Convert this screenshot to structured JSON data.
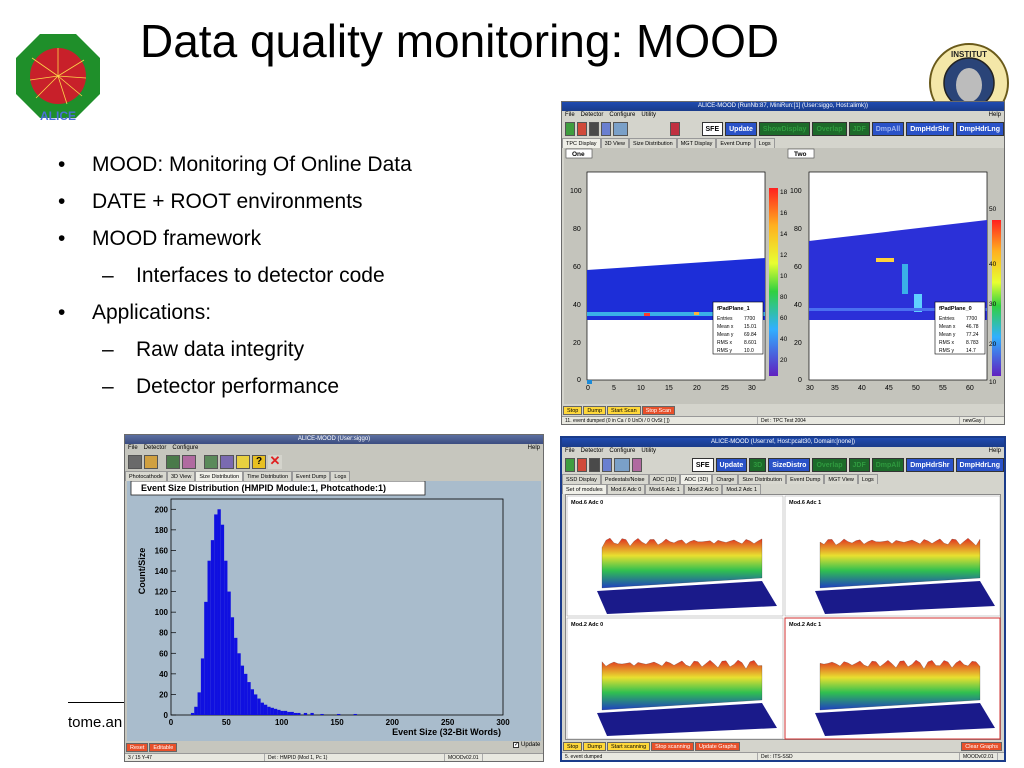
{
  "slide": {
    "title": "Data quality monitoring: MOOD",
    "bullets": [
      {
        "marker": "•",
        "text": "MOOD: Monitoring Of Online Data"
      },
      {
        "marker": "•",
        "text": "DATE + ROOT environments"
      },
      {
        "marker": "•",
        "text": "MOOD framework"
      },
      {
        "marker": "–",
        "text": "Interfaces to detector code",
        "sub": true
      },
      {
        "marker": "•",
        "text": "Applications:"
      },
      {
        "marker": "–",
        "text": "Raw data integrity",
        "sub": true
      },
      {
        "marker": "–",
        "text": "Detector performance",
        "sub": true
      }
    ],
    "footer": "tome.an",
    "logo_left_text": "ALICE",
    "logo_right_text": "INSTITUT"
  },
  "tpc_window": {
    "title": "ALICE-MOOD (RunNb:87, MiniRun:[1] (User:siggo, Host:alimk))",
    "menu": [
      "File",
      "Detector",
      "Configure",
      "Utility"
    ],
    "help": "Help",
    "buttons": [
      "SFE",
      "Update",
      "ShowDisplay",
      "Overlap",
      "JDF",
      "DmpAll",
      "DmpHdrShr",
      "DmpHdrLng"
    ],
    "tabs": [
      "TPC Display",
      "3D View",
      "Size Distribution",
      "MGT Display",
      "Event Dump",
      "Logs"
    ],
    "pad_labels": [
      "One",
      "Two"
    ],
    "panel1": {
      "yticks": [
        "100",
        "80",
        "60",
        "40",
        "20",
        "0"
      ],
      "xticks": [
        "0",
        "5",
        "10",
        "15",
        "20",
        "25",
        "30"
      ],
      "zticks": [
        "18",
        "16",
        "14",
        "12",
        "10",
        "80",
        "60",
        "40",
        "20"
      ],
      "stats": {
        "name": "fPadPlane_1",
        "rows": [
          [
            "Entries",
            "7700"
          ],
          [
            "Mean x",
            "15.01"
          ],
          [
            "Mean y",
            "69.84"
          ],
          [
            "RMS x",
            "8.601"
          ],
          [
            "RMS y",
            "10.0"
          ]
        ]
      }
    },
    "panel2": {
      "yticks": [
        "100",
        "80",
        "60",
        "40",
        "20",
        "0"
      ],
      "xticks": [
        "30",
        "35",
        "40",
        "45",
        "50",
        "55",
        "60"
      ],
      "zticks": [
        "50",
        "40",
        "30",
        "20",
        "10"
      ],
      "stats": {
        "name": "fPadPlane_0",
        "rows": [
          [
            "Entries",
            "7700"
          ],
          [
            "Mean x",
            "46.78"
          ],
          [
            "Mean y",
            "77.24"
          ],
          [
            "RMS x",
            "8.783"
          ],
          [
            "RMS y",
            "14.7"
          ]
        ]
      }
    },
    "bottom_buttons": [
      "Stop",
      "Dump",
      "Start Scan",
      "Stop Scan"
    ],
    "status": [
      "11. event dumped (0 in Ca / 0 UnDi / 0 OvSt [ ])",
      "Det : TPC Test 2004",
      "newGay"
    ]
  },
  "hmpid_window": {
    "title": "ALICE-MOOD (User:siggo)",
    "menu": [
      "File",
      "Detector",
      "Configure"
    ],
    "help": "Help",
    "tabs": [
      "Photocathode",
      "3D View",
      "Size Distribution",
      "Time Distribution",
      "Event Dump",
      "Logs"
    ],
    "plot_title": "Event Size Distribution (HMPID Module:1, Photcathode:1)",
    "update_label": "Update",
    "bottom_buttons": [
      "Reset",
      "Editable"
    ],
    "status": [
      "3 / 15 Y-47",
      "Det : HMPID (Mod 1, Pc 1)",
      "MOODv02.01"
    ]
  },
  "its_window": {
    "title": "ALICE-MOOD (User:ref, Host:pcalt30, Domain:[none])",
    "menu": [
      "File",
      "Detector",
      "Configure",
      "Utility"
    ],
    "help": "Help",
    "buttons": [
      "SFE",
      "Update",
      "3D",
      "SizeDistro",
      "Overlap",
      "JDF",
      "DmpAll",
      "DmpHdrShr",
      "DmpHdrLng"
    ],
    "tabs": [
      "SSD Display",
      "Pedestals/Noise",
      "ADC (1D)",
      "ADC (3D)",
      "Charge",
      "Size Distribution",
      "Event Dump",
      "MGT View",
      "Logs"
    ],
    "subtabs": [
      "Set of modules",
      "Mod.6 Adc 0",
      "Mod.6 Adc 1",
      "Mod.2 Adc 0",
      "Mod.2 Adc 1"
    ],
    "pads": [
      "Mod.6 Adc 0",
      "Mod.6 Adc 1",
      "Mod.2 Adc 0",
      "Mod.2 Adc 1"
    ],
    "bottom_buttons": [
      "Stop",
      "Dump",
      "Start scanning",
      "Stop scanning",
      "Update Graphs"
    ],
    "clear_label": "Clear Graphs",
    "status": [
      "5. event dumped",
      "Det : ITS-SSD",
      "MOODv02.01"
    ]
  },
  "chart_data": [
    {
      "type": "bar",
      "title": "Event Size Distribution (HMPID Module:1, Photcathode:1)",
      "xlabel": "Event Size (32-Bit Words)",
      "ylabel": "Count/Size",
      "xlim": [
        0,
        300
      ],
      "ylim": [
        0,
        210
      ],
      "xticks": [
        0,
        50,
        100,
        150,
        200,
        250,
        300
      ],
      "yticks": [
        0,
        20,
        40,
        60,
        80,
        100,
        120,
        140,
        160,
        180,
        200
      ],
      "bin_width": 3,
      "x": [
        18,
        21,
        24,
        27,
        30,
        33,
        36,
        39,
        42,
        45,
        48,
        51,
        54,
        57,
        60,
        63,
        66,
        69,
        72,
        75,
        78,
        81,
        84,
        87,
        90,
        93,
        96,
        99,
        102,
        105,
        108,
        111,
        114,
        120,
        126,
        135,
        150,
        165
      ],
      "values": [
        2,
        8,
        22,
        55,
        110,
        150,
        170,
        195,
        200,
        185,
        150,
        120,
        95,
        75,
        60,
        48,
        40,
        32,
        25,
        20,
        16,
        12,
        10,
        8,
        7,
        6,
        5,
        4,
        4,
        3,
        3,
        2,
        2,
        2,
        2,
        1,
        1,
        1
      ]
    },
    {
      "type": "heatmap",
      "title": "fPadPlane_1",
      "xlim": [
        0,
        33
      ],
      "ylim": [
        0,
        110
      ]
    },
    {
      "type": "heatmap",
      "title": "fPadPlane_0",
      "xlim": [
        28,
        64
      ],
      "ylim": [
        0,
        110
      ]
    }
  ]
}
